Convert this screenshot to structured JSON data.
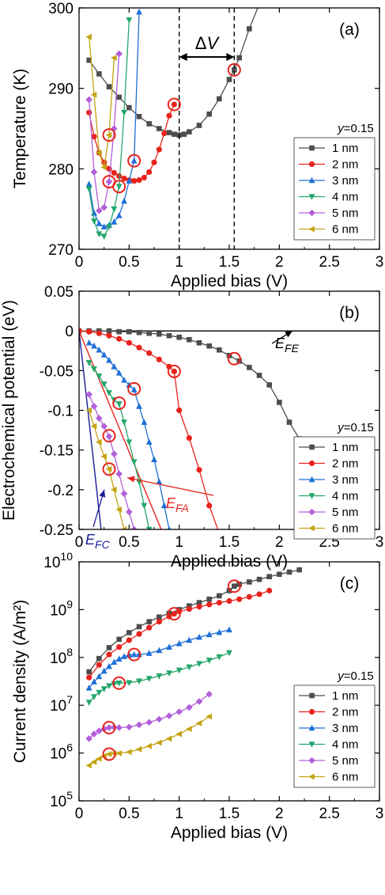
{
  "chart_data": [
    {
      "panel": "(a)",
      "type": "line",
      "xlabel": "Applied bias (V)",
      "ylabel": "Temperature (K)",
      "xlim": [
        0,
        3
      ],
      "ylim": [
        270,
        300
      ],
      "xticks": [
        "0",
        "0.5",
        "1",
        "1.5",
        "2",
        "2.5",
        "3"
      ],
      "yticks": [
        "270",
        "280",
        "290",
        "300"
      ],
      "legend_title": "y=0.15",
      "legend_position": "right",
      "annotations": [
        {
          "text": "ΔV",
          "type": "double-arrow",
          "from_x": 1.0,
          "to_x": 1.55
        },
        {
          "type": "dashed-vline",
          "x": 1.0
        },
        {
          "type": "dashed-vline",
          "x": 1.55
        }
      ],
      "series": [
        {
          "name": "1 nm",
          "color": "#4d4d4d",
          "marker": "square",
          "x": [
            0.1,
            0.2,
            0.3,
            0.4,
            0.5,
            0.6,
            0.7,
            0.8,
            0.9,
            0.95,
            1.0,
            1.05,
            1.1,
            1.2,
            1.3,
            1.4,
            1.5,
            1.55,
            1.6,
            1.7,
            1.8
          ],
          "y": [
            293.5,
            291.8,
            290.2,
            288.9,
            287.6,
            286.5,
            285.6,
            285.0,
            284.5,
            284.3,
            284.2,
            284.3,
            284.6,
            285.4,
            286.8,
            288.7,
            291.1,
            292.3,
            293.8,
            297.4,
            300.5
          ]
        },
        {
          "name": "2 nm",
          "color": "#e8231d",
          "marker": "circle",
          "x": [
            0.1,
            0.15,
            0.2,
            0.25,
            0.3,
            0.35,
            0.4,
            0.45,
            0.5,
            0.55,
            0.6,
            0.65,
            0.7,
            0.75,
            0.8,
            0.85,
            0.9,
            0.95
          ],
          "y": [
            287.0,
            284.0,
            282.0,
            280.8,
            280.0,
            279.5,
            279.1,
            278.8,
            278.6,
            278.5,
            278.6,
            278.9,
            279.6,
            280.8,
            282.4,
            284.4,
            286.6,
            288.0
          ]
        },
        {
          "name": "3 nm",
          "color": "#1f6fd6",
          "marker": "triangle-up",
          "x": [
            0.1,
            0.15,
            0.2,
            0.25,
            0.3,
            0.35,
            0.4,
            0.45,
            0.5,
            0.55,
            0.6
          ],
          "y": [
            278.1,
            274.5,
            273.2,
            272.8,
            273.0,
            273.4,
            274.2,
            276.0,
            278.5,
            281.0,
            299.5
          ]
        },
        {
          "name": "4 nm",
          "color": "#23a66a",
          "marker": "triangle-down",
          "x": [
            0.1,
            0.15,
            0.2,
            0.25,
            0.3,
            0.35,
            0.4,
            0.45,
            0.5
          ],
          "y": [
            277.5,
            273.5,
            271.9,
            271.6,
            272.8,
            275.0,
            277.8,
            287.0,
            298.5
          ]
        },
        {
          "name": "5 nm",
          "color": "#b25fd9",
          "marker": "diamond",
          "x": [
            0.1,
            0.15,
            0.2,
            0.25,
            0.3,
            0.35,
            0.4
          ],
          "y": [
            288.6,
            279.6,
            274.8,
            275.2,
            278.4,
            285.0,
            294.3
          ]
        },
        {
          "name": "6 nm",
          "color": "#c4a312",
          "marker": "triangle-left",
          "x": [
            0.1,
            0.15,
            0.2,
            0.25,
            0.3,
            0.35
          ],
          "y": [
            296.4,
            289.2,
            282.0,
            280.2,
            284.2,
            293.8
          ]
        }
      ],
      "circled_points": [
        {
          "x": 1.55,
          "y": 292.3
        },
        {
          "x": 0.95,
          "y": 288.0
        },
        {
          "x": 0.55,
          "y": 281.0
        },
        {
          "x": 0.4,
          "y": 277.8
        },
        {
          "x": 0.3,
          "y": 278.4
        },
        {
          "x": 0.3,
          "y": 284.2
        }
      ]
    },
    {
      "panel": "(b)",
      "type": "line",
      "xlabel": "Applied bias (V)",
      "ylabel": "Electrochemical potential (eV)",
      "xlim": [
        0,
        3
      ],
      "ylim": [
        -0.25,
        0.05
      ],
      "xticks": [
        "0",
        "0.5",
        "1",
        "1.5",
        "2",
        "2.5",
        "3"
      ],
      "yticks": [
        "0.05",
        "0",
        "-0.05",
        "-0.1",
        "-0.15",
        "-0.2",
        "-0.25"
      ],
      "legend_title": "y=0.15",
      "legend_position": "right",
      "annotations": [
        {
          "text": "E",
          "sub": "FE",
          "color": "#000000",
          "arrow_to": [
            2.1,
            0.0
          ]
        },
        {
          "text": "E",
          "sub": "FA",
          "color": "#e8231d",
          "arrow_to": [
            0.45,
            -0.185
          ]
        },
        {
          "text": "E",
          "sub": "FC",
          "color": "#1a1a99",
          "arrow_to": [
            0.22,
            -0.2
          ]
        }
      ],
      "reference_lines": [
        {
          "name": "E_FE",
          "color": "#000000",
          "x": [
            0,
            3
          ],
          "y": [
            0,
            0
          ]
        },
        {
          "name": "E_FA",
          "color": "#e8231d",
          "x": [
            0,
            0.82
          ],
          "y": [
            0,
            -0.25
          ]
        },
        {
          "name": "E_FC",
          "color": "#1a1a99",
          "x": [
            0,
            0.22
          ],
          "y": [
            0,
            -0.25
          ]
        }
      ],
      "series": [
        {
          "name": "1 nm",
          "color": "#4d4d4d",
          "marker": "square",
          "x": [
            0,
            0.1,
            0.2,
            0.3,
            0.4,
            0.5,
            0.6,
            0.7,
            0.8,
            0.9,
            1.0,
            1.1,
            1.2,
            1.3,
            1.4,
            1.5,
            1.6,
            1.7,
            1.8,
            1.9,
            2.0,
            2.1,
            2.2
          ],
          "y": [
            0,
            0,
            0,
            0,
            -0.001,
            -0.001,
            -0.002,
            -0.003,
            -0.004,
            -0.006,
            -0.008,
            -0.011,
            -0.015,
            -0.019,
            -0.024,
            -0.031,
            -0.038,
            -0.046,
            -0.056,
            -0.068,
            -0.09,
            -0.115,
            -0.136
          ]
        },
        {
          "name": "2 nm",
          "color": "#e8231d",
          "marker": "circle",
          "x": [
            0,
            0.1,
            0.2,
            0.3,
            0.4,
            0.5,
            0.6,
            0.7,
            0.8,
            0.9,
            0.95,
            1.0,
            1.1,
            1.2,
            1.3,
            1.4
          ],
          "y": [
            0,
            -0.001,
            -0.003,
            -0.006,
            -0.01,
            -0.015,
            -0.021,
            -0.028,
            -0.036,
            -0.045,
            -0.051,
            -0.1,
            -0.135,
            -0.175,
            -0.22,
            -0.255
          ]
        },
        {
          "name": "3 nm",
          "color": "#1f6fd6",
          "marker": "triangle-up",
          "x": [
            0.1,
            0.15,
            0.2,
            0.25,
            0.3,
            0.35,
            0.4,
            0.45,
            0.5,
            0.55,
            0.6,
            0.65,
            0.7,
            0.75,
            0.8,
            0.85,
            0.9
          ],
          "y": [
            -0.015,
            -0.019,
            -0.024,
            -0.03,
            -0.037,
            -0.045,
            -0.053,
            -0.062,
            -0.068,
            -0.074,
            -0.095,
            -0.115,
            -0.14,
            -0.162,
            -0.19,
            -0.22,
            -0.25
          ]
        },
        {
          "name": "4 nm",
          "color": "#23a66a",
          "marker": "triangle-down",
          "x": [
            0.1,
            0.15,
            0.2,
            0.25,
            0.3,
            0.35,
            0.4,
            0.45,
            0.5,
            0.55,
            0.6,
            0.65,
            0.7
          ],
          "y": [
            -0.04,
            -0.048,
            -0.057,
            -0.067,
            -0.078,
            -0.087,
            -0.092,
            -0.115,
            -0.14,
            -0.165,
            -0.19,
            -0.22,
            -0.25
          ]
        },
        {
          "name": "5 nm",
          "color": "#b25fd9",
          "marker": "diamond",
          "x": [
            0.1,
            0.15,
            0.2,
            0.25,
            0.3,
            0.35,
            0.4,
            0.45,
            0.5,
            0.55
          ],
          "y": [
            -0.08,
            -0.095,
            -0.11,
            -0.12,
            -0.133,
            -0.155,
            -0.18,
            -0.205,
            -0.228,
            -0.25
          ]
        },
        {
          "name": "6 nm",
          "color": "#c4a312",
          "marker": "triangle-left",
          "x": [
            0.1,
            0.15,
            0.2,
            0.25,
            0.3,
            0.35,
            0.4,
            0.45
          ],
          "y": [
            -0.1,
            -0.12,
            -0.14,
            -0.158,
            -0.174,
            -0.2,
            -0.225,
            -0.25
          ]
        }
      ],
      "circled_points": [
        {
          "x": 1.55,
          "y": -0.035
        },
        {
          "x": 0.95,
          "y": -0.051
        },
        {
          "x": 0.55,
          "y": -0.073
        },
        {
          "x": 0.4,
          "y": -0.091
        },
        {
          "x": 0.3,
          "y": -0.132
        },
        {
          "x": 0.3,
          "y": -0.174
        }
      ]
    },
    {
      "panel": "(c)",
      "type": "line",
      "xlabel": "Applied bias (V)",
      "ylabel": "Current density (A/m²)",
      "xlim": [
        0,
        3
      ],
      "ylim": [
        100000,
        10000000000
      ],
      "yscale": "log",
      "xticks": [
        "0",
        "0.5",
        "1",
        "1.5",
        "2",
        "2.5",
        "3"
      ],
      "yticks": [
        {
          "base": "10",
          "exp": "5"
        },
        {
          "base": "10",
          "exp": "6"
        },
        {
          "base": "10",
          "exp": "7"
        },
        {
          "base": "10",
          "exp": "8"
        },
        {
          "base": "10",
          "exp": "9"
        },
        {
          "base": "10",
          "exp": "10"
        }
      ],
      "legend_title": "y=0.15",
      "legend_position": "right",
      "series": [
        {
          "name": "1 nm",
          "color": "#4d4d4d",
          "marker": "square",
          "x": [
            0.1,
            0.2,
            0.3,
            0.4,
            0.5,
            0.6,
            0.7,
            0.8,
            0.9,
            1.0,
            1.1,
            1.2,
            1.3,
            1.4,
            1.5,
            1.55,
            1.6,
            1.7,
            1.8,
            1.9,
            2.0,
            2.1,
            2.2
          ],
          "y": [
            50000000.0,
            95000000.0,
            160000000.0,
            240000000.0,
            330000000.0,
            440000000.0,
            560000000.0,
            700000000.0,
            840000000.0,
            1000000000.0,
            1200000000.0,
            1400000000.0,
            1650000000.0,
            1950000000.0,
            2500000000.0,
            3100000000.0,
            3400000000.0,
            3800000000.0,
            4300000000.0,
            4900000000.0,
            5500000000.0,
            6100000000.0,
            6800000000.0
          ]
        },
        {
          "name": "2 nm",
          "color": "#e8231d",
          "marker": "circle",
          "x": [
            0.1,
            0.2,
            0.3,
            0.4,
            0.5,
            0.6,
            0.7,
            0.8,
            0.9,
            0.95,
            1.0,
            1.1,
            1.2,
            1.3,
            1.4,
            1.5,
            1.6,
            1.7,
            1.8,
            1.9
          ],
          "y": [
            38000000.0,
            70000000.0,
            115000000.0,
            165000000.0,
            230000000.0,
            310000000.0,
            420000000.0,
            560000000.0,
            720000000.0,
            820000000.0,
            920000000.0,
            1030000000.0,
            1150000000.0,
            1280000000.0,
            1400000000.0,
            1520000000.0,
            1650000000.0,
            1850000000.0,
            2100000000.0,
            2500000000.0
          ]
        },
        {
          "name": "3 nm",
          "color": "#1f6fd6",
          "marker": "triangle-up",
          "x": [
            0.1,
            0.15,
            0.2,
            0.25,
            0.3,
            0.35,
            0.4,
            0.45,
            0.5,
            0.55,
            0.6,
            0.7,
            0.8,
            0.9,
            1.0,
            1.1,
            1.2,
            1.3,
            1.4,
            1.5
          ],
          "y": [
            23000000.0,
            31000000.0,
            40000000.0,
            52000000.0,
            65000000.0,
            80000000.0,
            93000000.0,
            105000000.0,
            112000000.0,
            115000000.0,
            115000000.0,
            122000000.0,
            140000000.0,
            165000000.0,
            195000000.0,
            230000000.0,
            265000000.0,
            300000000.0,
            335000000.0,
            380000000.0
          ]
        },
        {
          "name": "4 nm",
          "color": "#23a66a",
          "marker": "triangle-down",
          "x": [
            0.1,
            0.15,
            0.2,
            0.25,
            0.3,
            0.35,
            0.4,
            0.5,
            0.6,
            0.7,
            0.8,
            0.9,
            1.0,
            1.1,
            1.2,
            1.3,
            1.4,
            1.5
          ],
          "y": [
            11500000.0,
            15000000.0,
            18500000.0,
            22000000.0,
            25500000.0,
            28000000.0,
            29000000.0,
            29500000.0,
            32000000.0,
            36000000.0,
            41000000.0,
            47000000.0,
            54000000.0,
            63000000.0,
            74000000.0,
            87000000.0,
            103000000.0,
            125000000.0
          ]
        },
        {
          "name": "5 nm",
          "color": "#b25fd9",
          "marker": "diamond",
          "x": [
            0.1,
            0.15,
            0.2,
            0.25,
            0.3,
            0.35,
            0.4,
            0.5,
            0.6,
            0.7,
            0.8,
            0.9,
            1.0,
            1.1,
            1.2,
            1.3
          ],
          "y": [
            2000000.0,
            2500000.0,
            2900000.0,
            3200000.0,
            3400000.0,
            3450000.0,
            3400000.0,
            3500000.0,
            3900000.0,
            4400000.0,
            5100000.0,
            6000000.0,
            7300000.0,
            9000000.0,
            12000000.0,
            17000000.0
          ]
        },
        {
          "name": "6 nm",
          "color": "#c4a312",
          "marker": "triangle-left",
          "x": [
            0.1,
            0.15,
            0.2,
            0.25,
            0.3,
            0.35,
            0.4,
            0.5,
            0.6,
            0.7,
            0.8,
            0.9,
            1.0,
            1.1,
            1.2,
            1.3
          ],
          "y": [
            550000.0,
            650000.0,
            760000.0,
            860000.0,
            950000.0,
            980000.0,
            990000.0,
            1050000.0,
            1200000.0,
            1400000.0,
            1650000.0,
            2000000.0,
            2500000.0,
            3200000.0,
            4200000.0,
            5800000.0
          ]
        }
      ],
      "circled_points": [
        {
          "x": 1.55,
          "y": 3100000000.0
        },
        {
          "x": 0.95,
          "y": 820000000.0
        },
        {
          "x": 0.55,
          "y": 115000000.0
        },
        {
          "x": 0.4,
          "y": 29000000.0
        },
        {
          "x": 0.3,
          "y": 3400000.0
        },
        {
          "x": 0.3,
          "y": 950000.0
        }
      ]
    }
  ]
}
